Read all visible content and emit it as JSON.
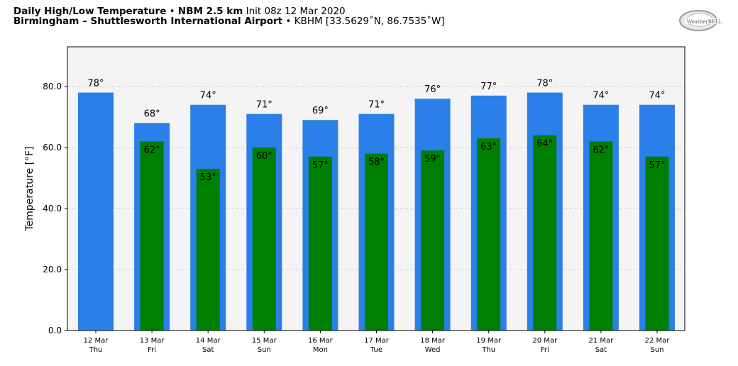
{
  "header": {
    "title_bold": "Daily High/Low Temperature",
    "sep1": "•",
    "model_bold": "NBM 2.5 km",
    "init": "Init 08z 12 Mar 2020",
    "station_bold": "Birmingham – Shuttlesworth International Airport",
    "sep2": "•",
    "station_info": "KBHM [33.5629˚N, 86.7535˚W]"
  },
  "logo": {
    "text": "WeatherBELL"
  },
  "colors": {
    "high_bar": "#2b7fe8",
    "low_bar": "#008000",
    "plot_bg": "#f4f4f4",
    "grid": "#cccccc"
  },
  "chart_data": {
    "type": "bar",
    "ylabel": "Temperature [°F]",
    "ylim": [
      0,
      93
    ],
    "yticks": [
      "0.0",
      "20.0",
      "40.0",
      "60.0",
      "80.0"
    ],
    "grid": true,
    "categories": [
      {
        "date": "12 Mar",
        "day": "Thu"
      },
      {
        "date": "13 Mar",
        "day": "Fri"
      },
      {
        "date": "14 Mar",
        "day": "Sat"
      },
      {
        "date": "15 Mar",
        "day": "Sun"
      },
      {
        "date": "16 Mar",
        "day": "Mon"
      },
      {
        "date": "17 Mar",
        "day": "Tue"
      },
      {
        "date": "18 Mar",
        "day": "Wed"
      },
      {
        "date": "19 Mar",
        "day": "Thu"
      },
      {
        "date": "20 Mar",
        "day": "Fri"
      },
      {
        "date": "21 Mar",
        "day": "Sat"
      },
      {
        "date": "22 Mar",
        "day": "Sun"
      }
    ],
    "series": [
      {
        "key": "high",
        "values": [
          78,
          68,
          74,
          71,
          69,
          71,
          76,
          77,
          78,
          74,
          74
        ]
      },
      {
        "key": "low",
        "values": [
          null,
          62,
          53,
          60,
          57,
          58,
          59,
          63,
          64,
          62,
          57
        ]
      }
    ],
    "high_labels": [
      "78°",
      "68°",
      "74°",
      "71°",
      "69°",
      "71°",
      "76°",
      "77°",
      "78°",
      "74°",
      "74°"
    ],
    "low_labels": [
      "",
      "62°",
      "53°",
      "60°",
      "57°",
      "58°",
      "59°",
      "63°",
      "64°",
      "62°",
      "57°"
    ]
  }
}
